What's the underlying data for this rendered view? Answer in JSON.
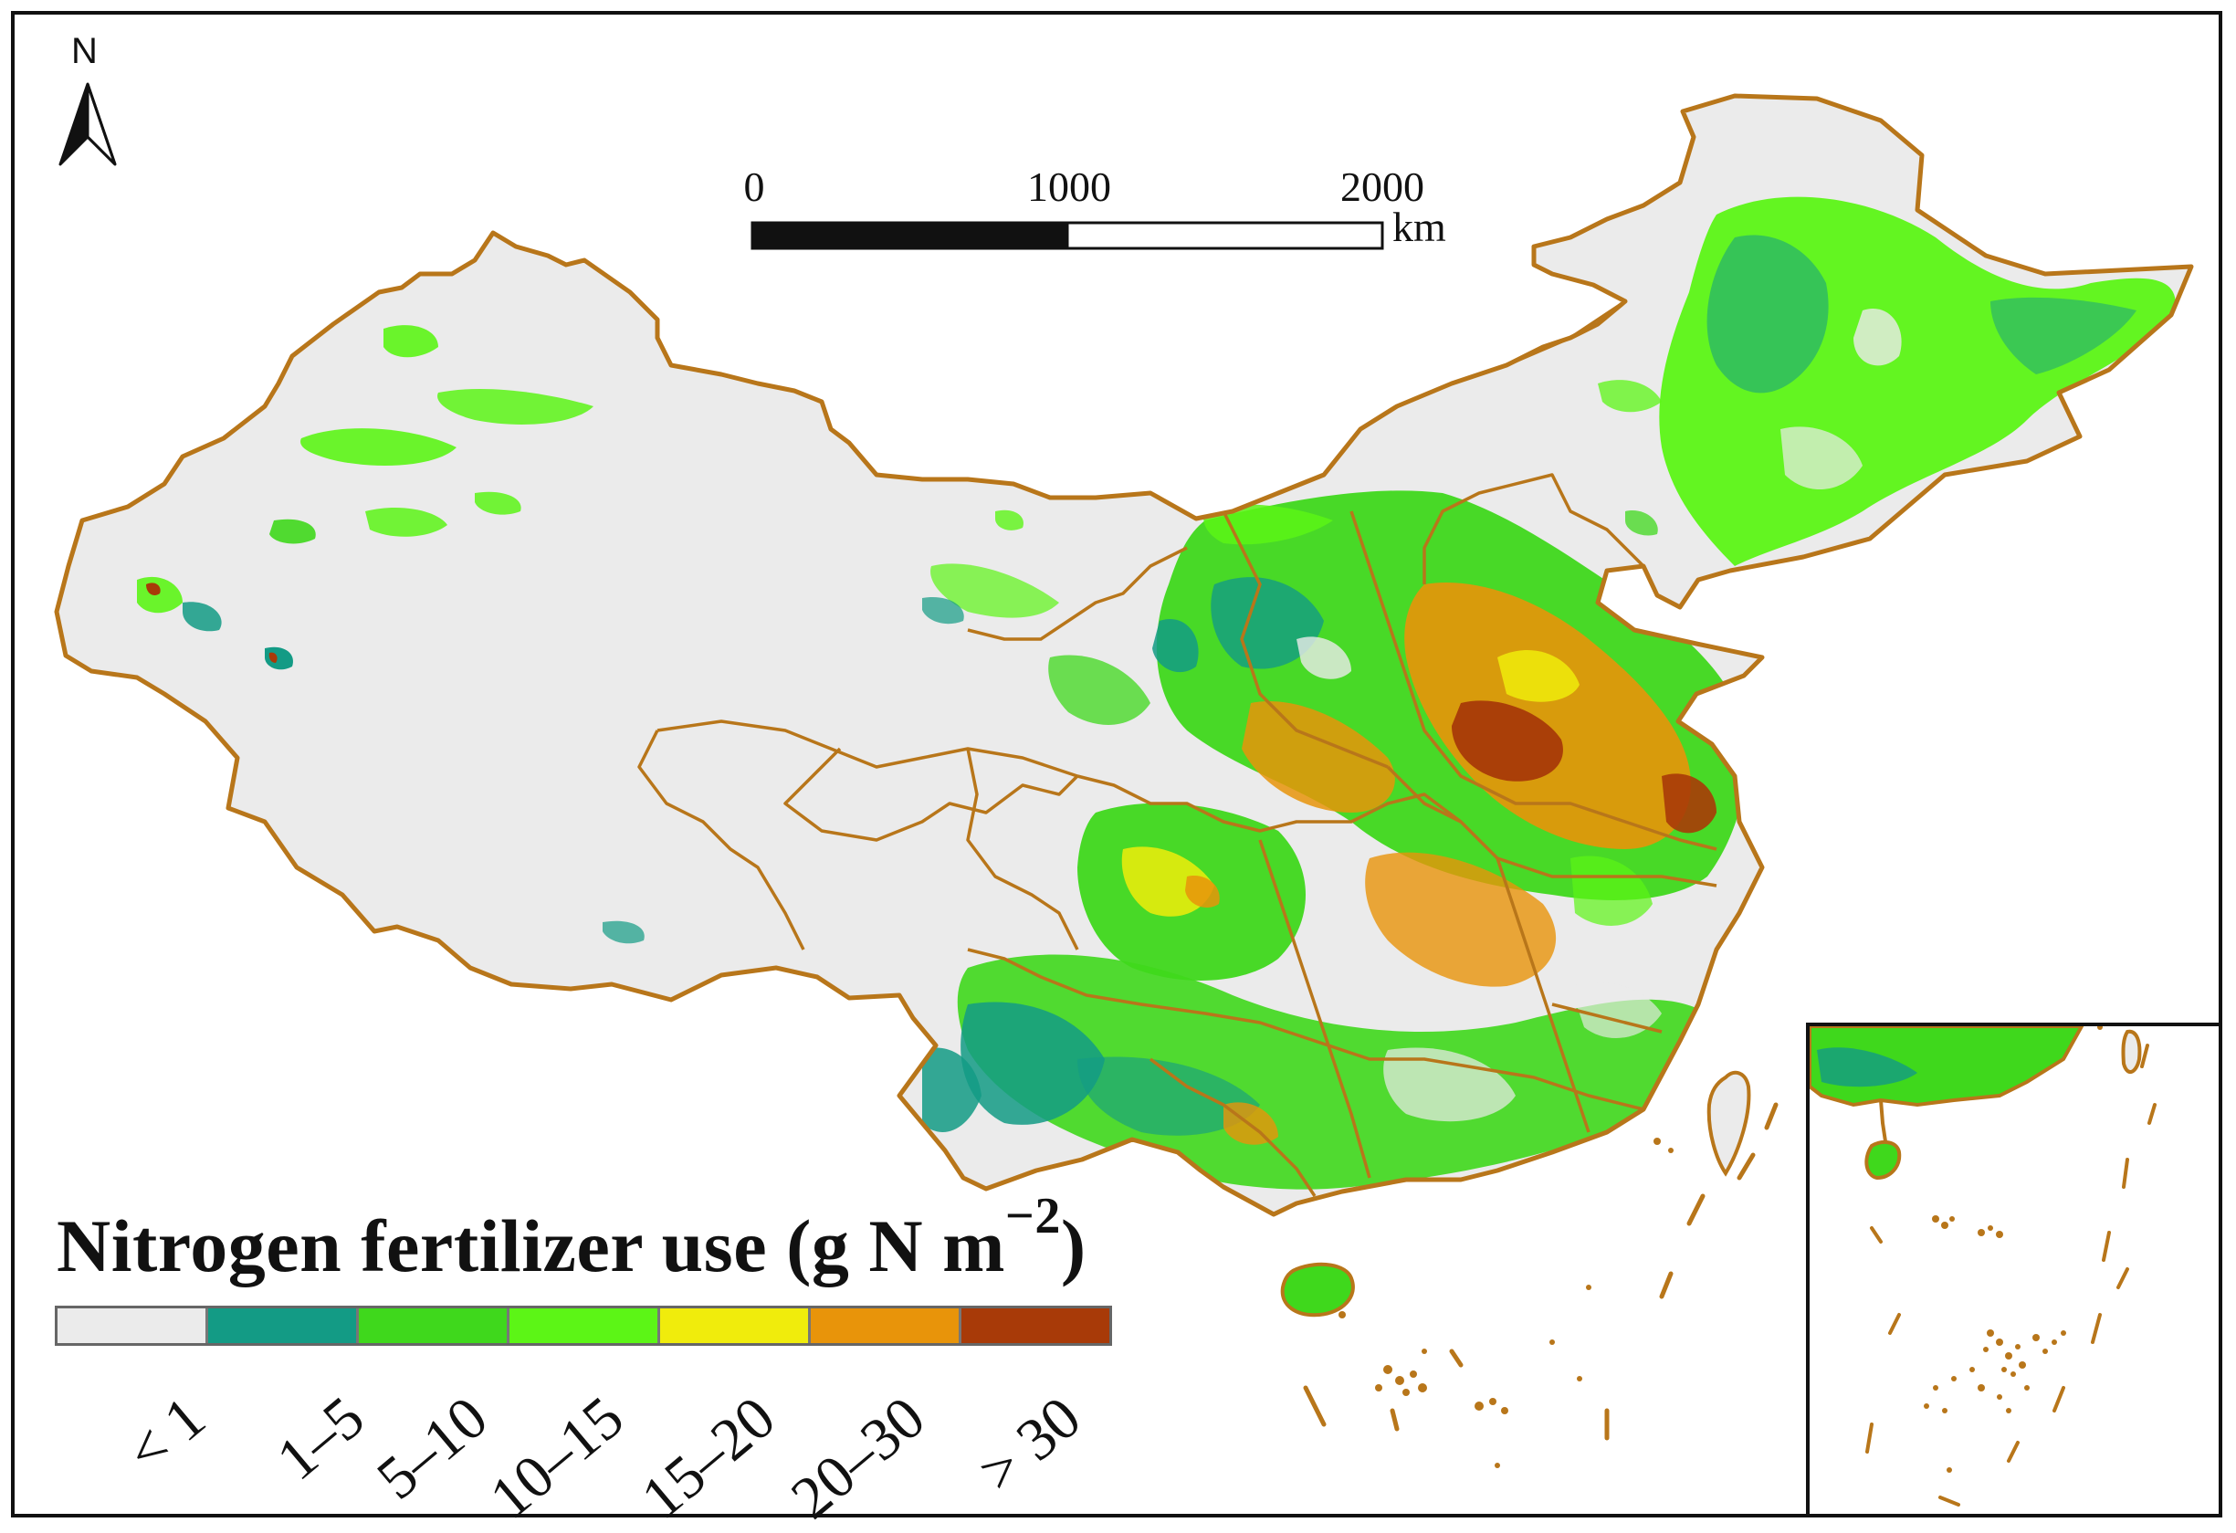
{
  "north": {
    "label": "N"
  },
  "scale_bar": {
    "ticks": [
      "0",
      "1000",
      "2000"
    ],
    "unit": "km"
  },
  "legend": {
    "title": "Nitrogen fertilizer use (g N m",
    "title_sup": "−2",
    "title_end": ")",
    "classes": [
      {
        "label": "< 1",
        "color": "#ebebeb"
      },
      {
        "label": "1–5",
        "color": "#139b85"
      },
      {
        "label": "5–10",
        "color": "#3fd81c"
      },
      {
        "label": "10–15",
        "color": "#5cf516"
      },
      {
        "label": "15–20",
        "color": "#f0ec0c"
      },
      {
        "label": "20–30",
        "color": "#e8940a"
      },
      {
        "label": "> 30",
        "color": "#a83a08"
      }
    ]
  },
  "colors": {
    "boundary": "#b8761a",
    "background_land": "#ebebeb"
  },
  "icons": [
    "north-arrow-icon"
  ]
}
